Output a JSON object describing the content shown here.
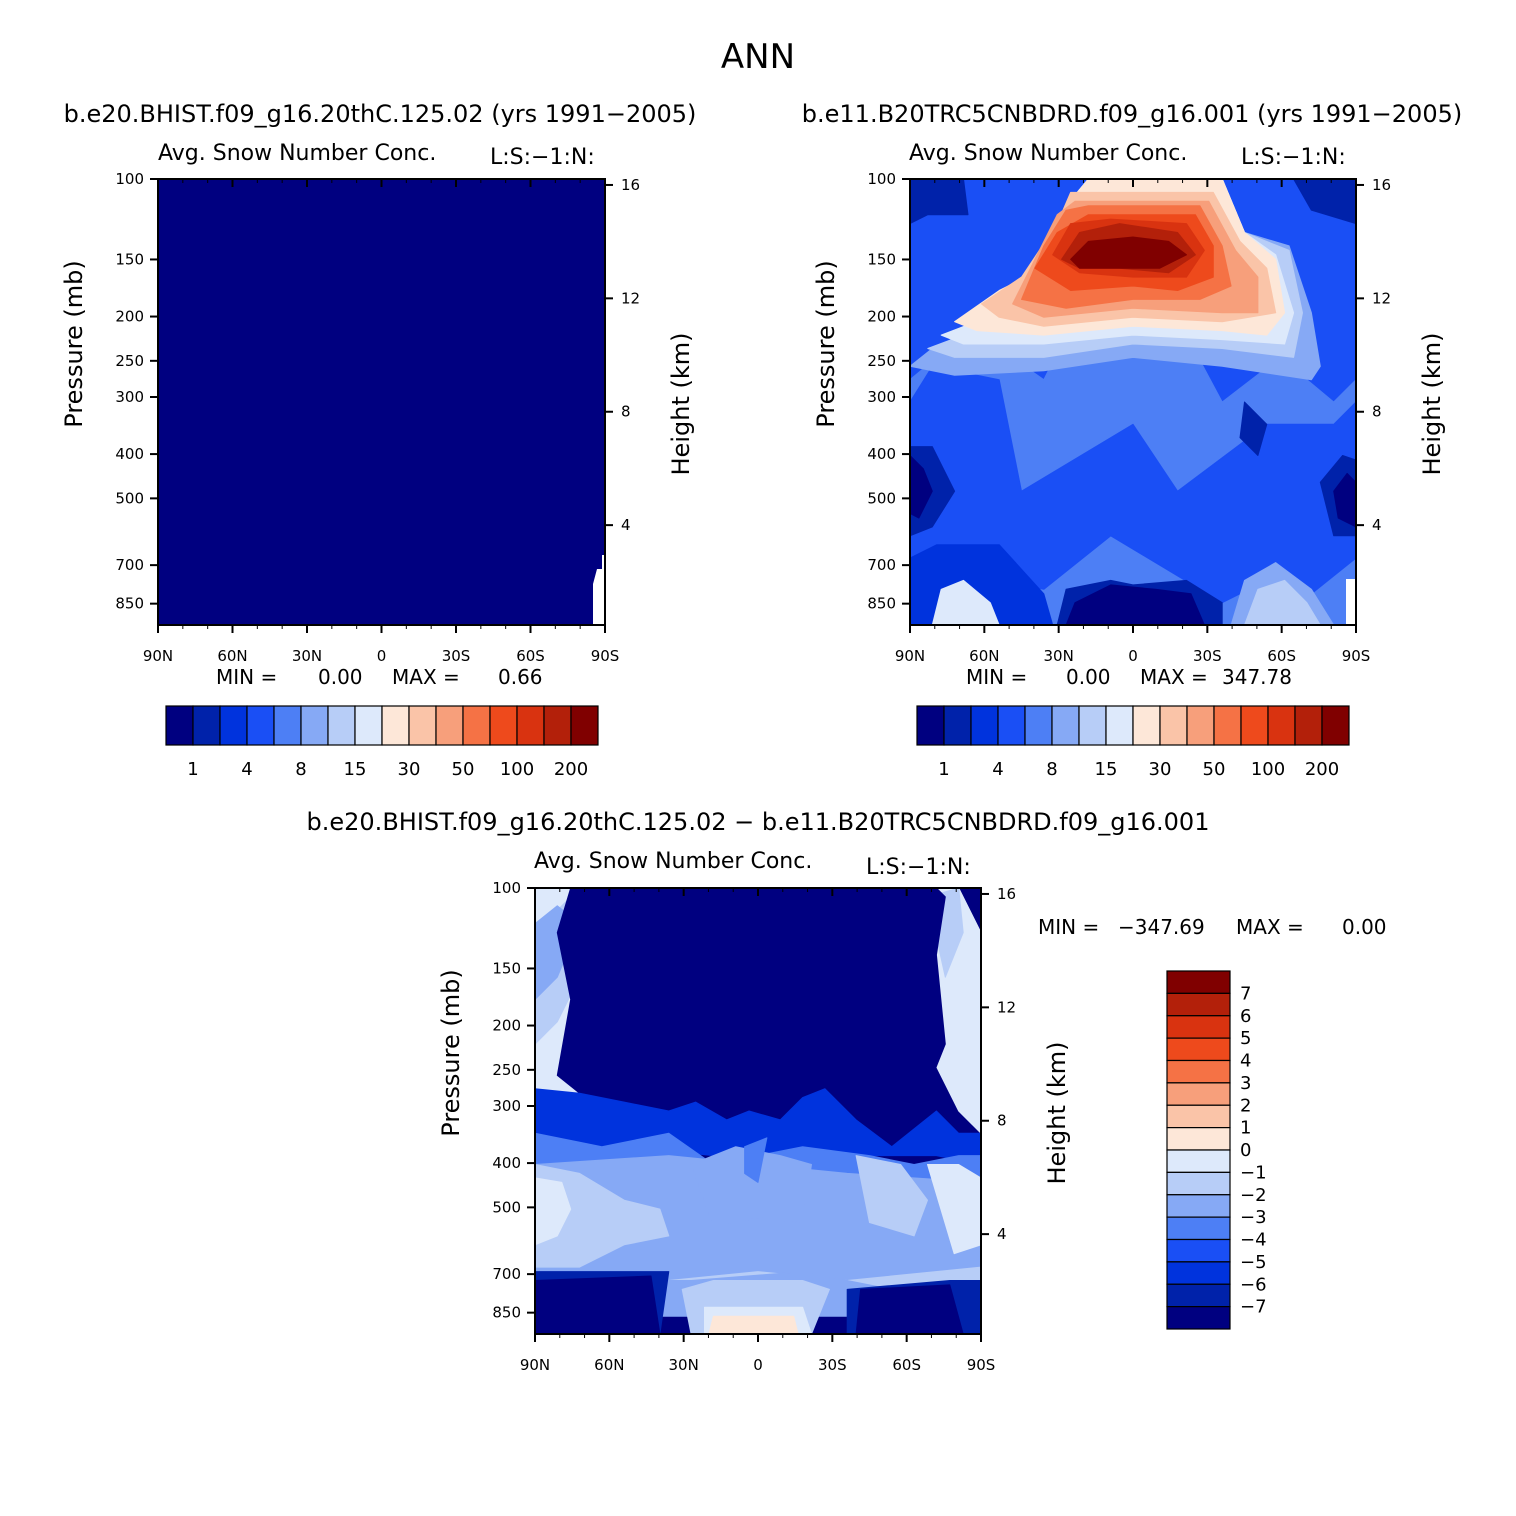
{
  "figure_title": "ANN",
  "colors": {
    "palette": [
      "#000080",
      "#0022aa",
      "#0033dd",
      "#1a4ff5",
      "#4d7ff5",
      "#86a9f5",
      "#b7cdf7",
      "#dde9fb",
      "#fde7d8",
      "#fac4a8",
      "#f79f7b",
      "#f57245",
      "#ee4a1c",
      "#d93310",
      "#b3200a",
      "#800000"
    ]
  },
  "axes": {
    "pressure_label": "Pressure (mb)",
    "height_label": "Height (km)",
    "pressure_ticks": [
      "100",
      "150",
      "200",
      "250",
      "300",
      "400",
      "500",
      "700",
      "850"
    ],
    "height_ticks": [
      "16",
      "12",
      "8",
      "4"
    ],
    "lat_ticks": [
      "90N",
      "60N",
      "30N",
      "0",
      "30S",
      "60S",
      "90S"
    ]
  },
  "colorbar_labels": [
    "1",
    "4",
    "8",
    "15",
    "30",
    "50",
    "100",
    "200"
  ],
  "diff_colorbar_labels": [
    "7",
    "6",
    "5",
    "4",
    "3",
    "2",
    "1",
    "0",
    "−1",
    "−2",
    "−3",
    "−4",
    "−5",
    "−6",
    "−7"
  ],
  "chart_data": [
    {
      "type": "heatmap",
      "case": "b.e20.BHIST.f09_g16.20thC.125.02 (yrs 1991−2005)",
      "variable": "Avg. Snow Number Conc.",
      "code": "L:S:−1:N:",
      "stats": {
        "min_label": "MIN =",
        "min": "0.00",
        "max_label": "MAX =",
        "max": "0.66"
      },
      "x": [
        "90N",
        "60N",
        "30N",
        "0",
        "30S",
        "60S",
        "90S"
      ],
      "y_pressure": [
        100,
        150,
        200,
        250,
        300,
        400,
        500,
        700,
        850
      ],
      "levels": [
        1,
        4,
        8,
        15,
        30,
        50,
        100,
        200
      ],
      "values": "all below lowest level (0.00–0.66)"
    },
    {
      "type": "heatmap",
      "case": "b.e11.B20TRC5CNBDRD.f09_g16.001 (yrs 1991−2005)",
      "variable": "Avg. Snow Number Conc.",
      "code": "L:S:−1:N:",
      "stats": {
        "min_label": "MIN =",
        "min": "0.00",
        "max_label": "MAX =",
        "max": "347.78"
      },
      "x": [
        "90N",
        "60N",
        "30N",
        "0",
        "30S",
        "60S",
        "90S"
      ],
      "y_pressure": [
        100,
        150,
        200,
        250,
        300,
        400,
        500,
        700,
        850
      ],
      "levels": [
        1,
        4,
        8,
        15,
        30,
        50,
        100,
        200
      ],
      "peak": {
        "pressure": 150,
        "lat": "0",
        "value": 347.78
      }
    },
    {
      "type": "heatmap",
      "case": "b.e20.BHIST.f09_g16.20thC.125.02 − b.e11.B20TRC5CNBDRD.f09_g16.001",
      "variable": "Avg. Snow Number Conc.",
      "code": "L:S:−1:N:",
      "stats": {
        "min_label": "MIN =",
        "min": "−347.69",
        "max_label": "MAX =",
        "max": "0.00"
      },
      "x": [
        "90N",
        "60N",
        "30N",
        "0",
        "30S",
        "60S",
        "90S"
      ],
      "y_pressure": [
        100,
        150,
        200,
        250,
        300,
        400,
        500,
        700,
        850
      ],
      "levels": [
        -7,
        -6,
        -5,
        -4,
        -3,
        -2,
        -1,
        0,
        1,
        2,
        3,
        4,
        5,
        6,
        7
      ]
    }
  ]
}
